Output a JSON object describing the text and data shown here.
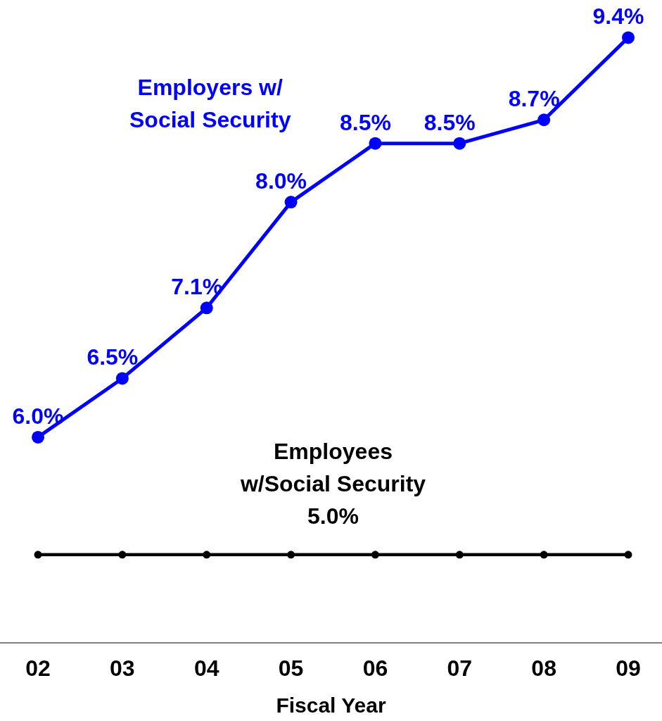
{
  "chart_data": {
    "type": "line",
    "xlabel": "Fiscal Year",
    "categories": [
      "02",
      "03",
      "04",
      "05",
      "06",
      "07",
      "08",
      "09"
    ],
    "series": [
      {
        "name": "Employers w/ Social Security",
        "color": "#0000ff",
        "values": [
          6.0,
          6.5,
          7.1,
          8.0,
          8.5,
          8.5,
          8.7,
          9.4
        ],
        "value_labels": [
          "6.0%",
          "6.5%",
          "7.1%",
          "8.0%",
          "8.5%",
          "8.5%",
          "8.7%",
          "9.4%"
        ]
      },
      {
        "name": "Employees w/Social Security",
        "color": "#000000",
        "values": [
          5.0,
          5.0,
          5.0,
          5.0,
          5.0,
          5.0,
          5.0,
          5.0
        ]
      }
    ],
    "annotations": [
      "5.0%"
    ],
    "marker": "circle",
    "line_style": "solid"
  }
}
